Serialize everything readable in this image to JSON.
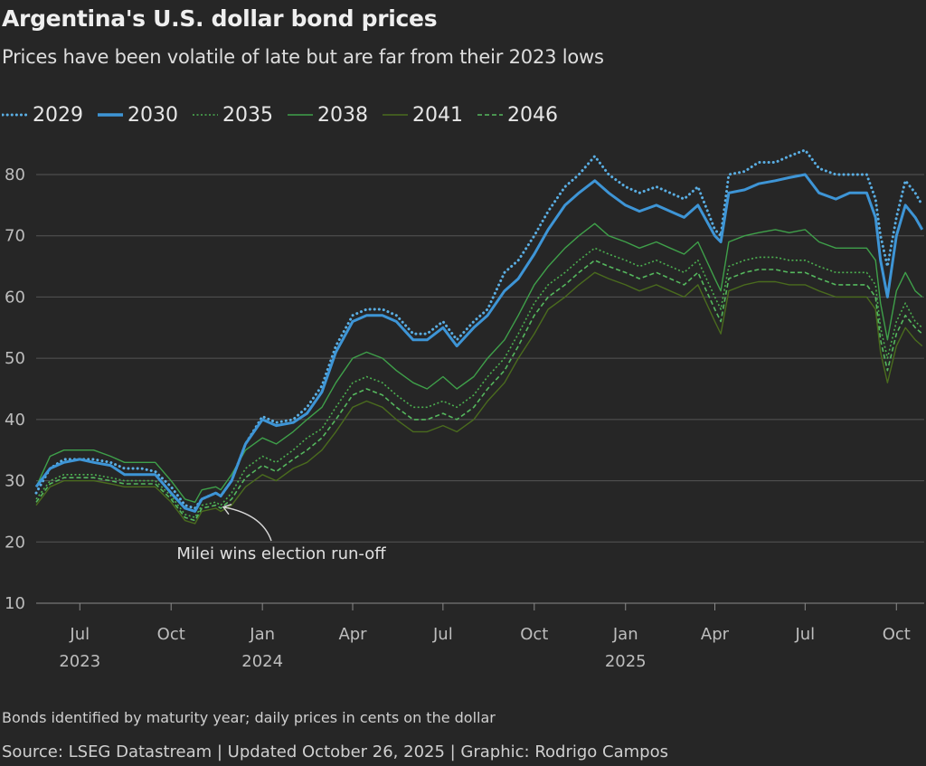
{
  "title": "Argentina's U.S. dollar bond prices",
  "subtitle": "Prices have been volatile of late but are far from their 2023 lows",
  "note": "Bonds identified by maturity year; daily prices in cents on the dollar",
  "source": "Source: LSEG Datastream | Updated October 26, 2025 | Graphic: Rodrigo Campos",
  "chart_data": {
    "type": "line",
    "title": "Argentina's U.S. dollar bond prices",
    "subtitle": "Prices have been volatile of late but are far from their 2023 lows",
    "xlabel": "",
    "ylabel": "",
    "ylim": [
      10,
      85
    ],
    "xlim": [
      "2023-05-18",
      "2025-10-29"
    ],
    "yticks": [
      10,
      20,
      30,
      40,
      50,
      60,
      70,
      80
    ],
    "xticks": [
      {
        "date": "2023-07-01",
        "label": "Jul",
        "year": "2023"
      },
      {
        "date": "2023-10-01",
        "label": "Oct",
        "year": ""
      },
      {
        "date": "2024-01-01",
        "label": "Jan",
        "year": "2024"
      },
      {
        "date": "2024-04-01",
        "label": "Apr",
        "year": ""
      },
      {
        "date": "2024-07-01",
        "label": "Jul",
        "year": ""
      },
      {
        "date": "2024-10-01",
        "label": "Oct",
        "year": ""
      },
      {
        "date": "2025-01-01",
        "label": "Jan",
        "year": "2025"
      },
      {
        "date": "2025-04-01",
        "label": "Apr",
        "year": ""
      },
      {
        "date": "2025-07-01",
        "label": "Jul",
        "year": ""
      },
      {
        "date": "2025-10-01",
        "label": "Oct",
        "year": ""
      }
    ],
    "grid": true,
    "legend_position": "top-left",
    "annotations": [
      {
        "text": "Milei wins election run-off",
        "date": "2023-11-19",
        "value": 26
      }
    ],
    "x": [
      "2023-05-18",
      "2023-06-01",
      "2023-06-15",
      "2023-07-01",
      "2023-07-15",
      "2023-08-01",
      "2023-08-15",
      "2023-09-01",
      "2023-09-15",
      "2023-10-01",
      "2023-10-15",
      "2023-10-25",
      "2023-11-01",
      "2023-11-15",
      "2023-11-20",
      "2023-12-01",
      "2023-12-15",
      "2024-01-01",
      "2024-01-15",
      "2024-02-01",
      "2024-02-15",
      "2024-03-01",
      "2024-03-15",
      "2024-04-01",
      "2024-04-15",
      "2024-05-01",
      "2024-05-15",
      "2024-06-01",
      "2024-06-15",
      "2024-07-01",
      "2024-07-15",
      "2024-08-01",
      "2024-08-15",
      "2024-09-01",
      "2024-09-15",
      "2024-10-01",
      "2024-10-15",
      "2024-11-01",
      "2024-11-15",
      "2024-12-01",
      "2024-12-15",
      "2025-01-01",
      "2025-01-15",
      "2025-02-01",
      "2025-02-15",
      "2025-03-01",
      "2025-03-15",
      "2025-04-01",
      "2025-04-07",
      "2025-04-15",
      "2025-05-01",
      "2025-05-15",
      "2025-06-01",
      "2025-06-15",
      "2025-07-01",
      "2025-07-15",
      "2025-08-01",
      "2025-08-15",
      "2025-09-01",
      "2025-09-10",
      "2025-09-15",
      "2025-09-22",
      "2025-10-01",
      "2025-10-10",
      "2025-10-20",
      "2025-10-27"
    ],
    "series": [
      {
        "name": "2029",
        "color": "#5aaee3",
        "style": "dotted",
        "values": [
          28,
          32,
          33.5,
          33.5,
          33.5,
          33,
          32,
          32,
          31.5,
          29,
          26,
          25.5,
          27,
          28,
          27.5,
          30,
          36,
          40.5,
          39.5,
          40,
          42,
          45.5,
          52,
          57,
          58,
          58,
          57,
          54,
          54,
          56,
          53,
          56,
          58,
          64,
          66,
          70,
          74,
          78,
          80,
          83,
          80,
          78,
          77,
          78,
          77,
          76,
          78,
          71,
          70,
          80,
          80.5,
          82,
          82,
          83,
          84,
          81,
          80,
          80,
          80,
          76,
          70,
          65,
          73,
          79,
          77,
          75
        ]
      },
      {
        "name": "2030",
        "color": "#3e95d6",
        "style": "solid",
        "values": [
          29,
          32,
          33,
          33.5,
          33,
          32.5,
          31,
          31,
          31,
          28,
          25.5,
          25,
          27,
          28,
          27.5,
          30,
          36,
          40,
          39,
          39.5,
          41,
          44.5,
          51,
          56,
          57,
          57,
          56,
          53,
          53,
          55,
          52,
          55,
          57,
          61,
          63,
          67,
          71,
          75,
          77,
          79,
          77,
          75,
          74,
          75,
          74,
          73,
          75,
          70,
          69,
          77,
          77.5,
          78.5,
          79,
          79.5,
          80,
          77,
          76,
          77,
          77,
          73,
          66,
          60,
          70,
          75,
          73,
          71
        ]
      },
      {
        "name": "2035",
        "color": "#4caf50",
        "style": "dotted",
        "values": [
          27,
          30,
          31,
          31,
          31,
          30.5,
          30,
          30,
          30,
          27.5,
          24.5,
          24,
          26,
          26.5,
          26,
          28,
          32,
          34,
          33,
          35,
          37,
          38.5,
          42,
          46,
          47,
          46,
          44,
          42,
          42,
          43,
          42,
          44,
          47,
          50,
          54,
          59,
          62,
          64,
          66,
          68,
          67,
          66,
          65,
          66,
          65,
          64,
          66,
          60,
          58,
          65,
          66,
          66.5,
          66.5,
          66,
          66,
          65,
          64,
          64,
          64,
          62,
          55,
          50,
          56,
          59,
          56,
          55
        ]
      },
      {
        "name": "2038",
        "color": "#3fa04a",
        "style": "solid",
        "values": [
          29,
          34,
          35,
          35,
          35,
          34,
          33,
          33,
          33,
          30,
          27,
          26.5,
          28.5,
          29,
          28.5,
          31,
          35,
          37,
          36,
          38,
          40,
          42,
          46,
          50,
          51,
          50,
          48,
          46,
          45,
          47,
          45,
          47,
          50,
          53,
          57,
          62,
          65,
          68,
          70,
          72,
          70,
          69,
          68,
          69,
          68,
          67,
          69,
          63,
          61,
          69,
          70,
          70.5,
          71,
          70.5,
          71,
          69,
          68,
          68,
          68,
          66,
          59,
          53,
          61,
          64,
          61,
          60
        ]
      },
      {
        "name": "2041",
        "color": "#4a6b1e",
        "style": "solid",
        "values": [
          26,
          29,
          30,
          30,
          30,
          29.5,
          29,
          29,
          29,
          26.5,
          23.5,
          23,
          25,
          25.5,
          25,
          26,
          29,
          31,
          30,
          32,
          33,
          35,
          38,
          42,
          43,
          42,
          40,
          38,
          38,
          39,
          38,
          40,
          43,
          46,
          50,
          54,
          58,
          60,
          62,
          64,
          63,
          62,
          61,
          62,
          61,
          60,
          62,
          56,
          54,
          61,
          62,
          62.5,
          62.5,
          62,
          62,
          61,
          60,
          60,
          60,
          58,
          51,
          46,
          52,
          55,
          53,
          52
        ]
      },
      {
        "name": "2046",
        "color": "#55b85e",
        "style": "dashed",
        "values": [
          26.5,
          29.5,
          30.5,
          30.5,
          30.5,
          30,
          29.5,
          29.5,
          29.5,
          27,
          24,
          23.5,
          25.5,
          26,
          25.5,
          27,
          30.5,
          32.5,
          31.5,
          33.5,
          35,
          37,
          40,
          44,
          45,
          44,
          42,
          40,
          40,
          41,
          40,
          42,
          45,
          48,
          52,
          57,
          60,
          62,
          64,
          66,
          65,
          64,
          63,
          64,
          63,
          62,
          64,
          58,
          56,
          63,
          64,
          64.5,
          64.5,
          64,
          64,
          63,
          62,
          62,
          62,
          60,
          53,
          48,
          54,
          57,
          55,
          54
        ]
      }
    ]
  }
}
